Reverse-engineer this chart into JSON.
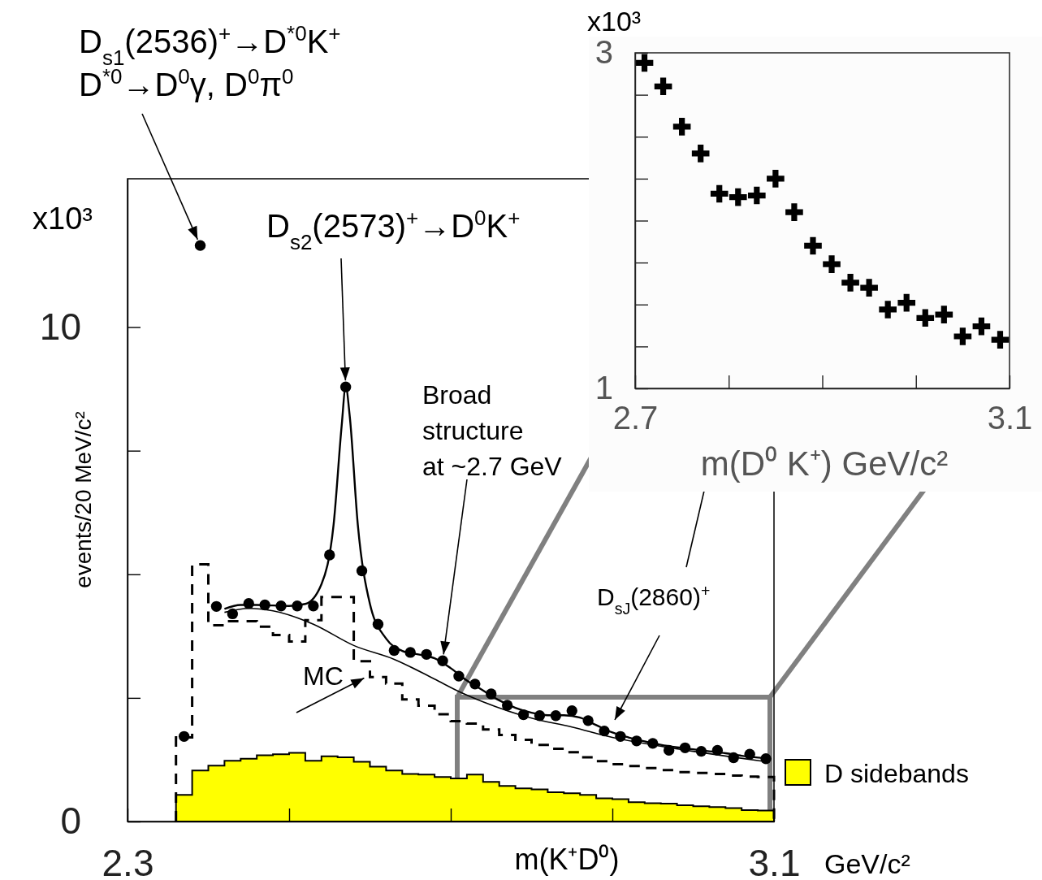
{
  "chart_data": [
    {
      "type": "scatter",
      "xlabel": "m(K⁺D⁰)",
      "ylabel": "events/20 MeV/c²",
      "xlim": [
        2.3,
        3.1
      ],
      "ylim": [
        0,
        13
      ],
      "xticks": [
        2.3,
        {
          "value": 2.5,
          "label": null
        },
        {
          "value": 2.7,
          "label": null
        },
        {
          "value": 2.9,
          "label": null
        },
        3.1
      ],
      "yticks": [
        0,
        {
          "value": 2.5,
          "label": null
        },
        {
          "value": 5,
          "label": null
        },
        {
          "value": 7.5,
          "label": null
        },
        10
      ],
      "legend": "right",
      "annotations": [
        "D$_{s1}$(2536)$^{+}$→D$^{*0}$K$^{+}$",
        {
          "text": "D$^{*0}$→D$^{0}$γ, D$^{0}$π$^{0}$",
          "x": 2.39,
          "y": 11.65
        },
        {
          "text": "D$_{s2}$(2573)$^{+}$→D$^{0}$K$^{+}$",
          "x": 2.57,
          "y": 8.79
        },
        {
          "text": "Broad\nstructure\nat ~2.7 GeV",
          "x": 2.69,
          "y": 3.25
        },
        {
          "text": "MC",
          "x": 2.6,
          "y": 2.96
        },
        "GeV/c²",
        "x10³",
        "D$_{sJ}$(2860)$^{+}$"
      ],
      "series": [
        {
          "type": "histogram",
          "name": "D sidebands",
          "color": "#ffff00",
          "bins": [
            2.36,
            2.38,
            2.4,
            2.42,
            2.44,
            2.46,
            2.48,
            2.5,
            2.52,
            2.54,
            2.56,
            2.58,
            2.6,
            2.62,
            2.64,
            2.66,
            2.68,
            2.7,
            2.72,
            2.74,
            2.76,
            2.78,
            2.8,
            2.82,
            2.84,
            2.86,
            2.88,
            2.9,
            2.92,
            2.94,
            2.96,
            2.98,
            3.0,
            3.02,
            3.04,
            3.06,
            3.08,
            3.1
          ],
          "values": [
            0.54,
            1.03,
            1.13,
            1.23,
            1.27,
            1.34,
            1.36,
            1.39,
            1.23,
            1.32,
            1.3,
            1.21,
            1.11,
            1.03,
            0.96,
            0.95,
            0.9,
            0.87,
            0.95,
            0.8,
            0.72,
            0.67,
            0.65,
            0.59,
            0.57,
            0.54,
            0.47,
            0.45,
            0.39,
            0.37,
            0.36,
            0.33,
            0.31,
            0.29,
            0.27,
            0.23,
            0.22
          ]
        },
        {
          "type": "histogram",
          "color": "#000000",
          "line_style": "dashed",
          "bins": [
            2.36,
            2.38,
            2.4,
            2.42,
            2.44,
            2.46,
            2.48,
            2.5,
            2.52,
            2.54,
            2.56,
            2.58,
            2.6,
            2.62,
            2.64,
            2.66,
            2.68,
            2.7,
            2.72,
            2.74,
            2.76,
            2.78,
            2.8,
            2.82,
            2.84,
            2.86,
            2.88,
            2.9,
            2.92,
            2.94,
            2.96,
            2.98,
            3.0,
            3.02,
            3.04,
            3.06,
            3.08,
            3.1
          ],
          "values": [
            1.7,
            5.2,
            3.97,
            4.05,
            4.05,
            3.94,
            3.77,
            3.64,
            4.07,
            4.54,
            4.54,
            3.24,
            2.92,
            2.79,
            2.47,
            2.34,
            2.17,
            2.03,
            1.98,
            1.86,
            1.75,
            1.65,
            1.55,
            1.47,
            1.4,
            1.3,
            1.22,
            1.16,
            1.12,
            1.08,
            1.04,
            1.0,
            0.98,
            0.96,
            0.93,
            0.91,
            0.9
          ]
        },
        {
          "type": "line",
          "color": "#000000",
          "x": [
            2.42,
            2.45,
            2.48,
            2.53,
            2.58,
            2.63,
            2.68,
            2.71,
            2.74,
            2.8,
            2.85,
            2.9,
            2.95,
            3.0,
            3.05,
            3.09
          ],
          "values": [
            4.23,
            4.31,
            4.26,
            3.99,
            3.56,
            3.28,
            2.88,
            2.63,
            2.42,
            2.09,
            1.91,
            1.7,
            1.55,
            1.42,
            1.3,
            1.21
          ]
        },
        {
          "type": "line",
          "color": "#000000",
          "x": [
            2.42,
            2.44,
            2.46,
            2.48,
            2.5,
            2.52,
            2.54,
            2.555,
            2.565,
            2.57,
            2.575,
            2.585,
            2.6,
            2.62,
            2.64,
            2.66,
            2.68,
            2.7,
            2.72,
            2.74,
            2.76,
            2.78,
            2.8,
            2.82,
            2.84,
            2.86,
            2.88,
            2.9,
            2.92,
            2.94,
            2.96,
            2.98,
            3.0,
            3.02,
            3.04,
            3.06,
            3.09
          ],
          "values": [
            4.3,
            4.38,
            4.38,
            4.37,
            4.36,
            4.4,
            4.8,
            6.0,
            8.0,
            8.8,
            8.2,
            6.0,
            4.4,
            3.7,
            3.45,
            3.38,
            3.3,
            3.1,
            2.85,
            2.65,
            2.45,
            2.3,
            2.2,
            2.15,
            2.15,
            2.1,
            1.95,
            1.8,
            1.7,
            1.62,
            1.55,
            1.5,
            1.46,
            1.42,
            1.38,
            1.33,
            1.28
          ]
        },
        {
          "color": "#000000",
          "marker": "circle",
          "x": [
            2.37,
            2.39,
            2.41,
            2.43,
            2.45,
            2.47,
            2.49,
            2.51,
            2.53,
            2.55,
            2.57,
            2.59,
            2.61,
            2.63,
            2.65,
            2.67,
            2.69,
            2.71,
            2.73,
            2.75,
            2.77,
            2.79,
            2.81,
            2.83,
            2.85,
            2.87,
            2.89,
            2.91,
            2.93,
            2.95,
            2.97,
            2.99,
            3.01,
            3.03,
            3.05,
            3.07,
            3.09
          ],
          "values": [
            1.72,
            11.65,
            4.35,
            4.2,
            4.41,
            4.38,
            4.36,
            4.36,
            4.36,
            5.39,
            8.79,
            5.07,
            3.99,
            3.46,
            3.42,
            3.38,
            3.25,
            2.94,
            2.78,
            2.58,
            2.35,
            2.16,
            2.14,
            2.14,
            2.24,
            2.04,
            1.83,
            1.72,
            1.63,
            1.58,
            1.44,
            1.49,
            1.42,
            1.44,
            1.29,
            1.36,
            1.27
          ]
        }
      ]
    },
    {
      "type": "scatter",
      "xlabel": "m(D⁰ K⁺) GeV/c²",
      "xlim": [
        2.7,
        3.1
      ],
      "ylim": [
        1,
        3
      ],
      "xticks": [
        2.7,
        {
          "value": 2.8,
          "label": null
        },
        {
          "value": 2.9,
          "label": null
        },
        {
          "value": 3.0,
          "label": null
        },
        3.1
      ],
      "yticks": [
        1,
        {
          "value": 1.25,
          "label": null
        },
        {
          "value": 1.5,
          "label": null
        },
        {
          "value": 1.75,
          "label": null
        },
        {
          "value": 2,
          "label": null
        },
        {
          "value": 2.25,
          "label": null
        },
        {
          "value": 2.5,
          "label": null
        },
        {
          "value": 2.75,
          "label": null
        },
        3
      ],
      "annotations": [
        "x10³"
      ],
      "marker": "cross",
      "series": [
        {
          "color": "#000000",
          "x": [
            2.71,
            2.73,
            2.75,
            2.77,
            2.79,
            2.81,
            2.83,
            2.85,
            2.87,
            2.89,
            2.91,
            2.93,
            2.95,
            2.97,
            2.99,
            3.01,
            3.03,
            3.05,
            3.07,
            3.09
          ],
          "values": [
            2.94,
            2.8,
            2.56,
            2.4,
            2.16,
            2.14,
            2.15,
            2.25,
            2.05,
            1.85,
            1.74,
            1.63,
            1.6,
            1.47,
            1.51,
            1.42,
            1.44,
            1.31,
            1.37,
            1.29
          ]
        }
      ]
    }
  ]
}
